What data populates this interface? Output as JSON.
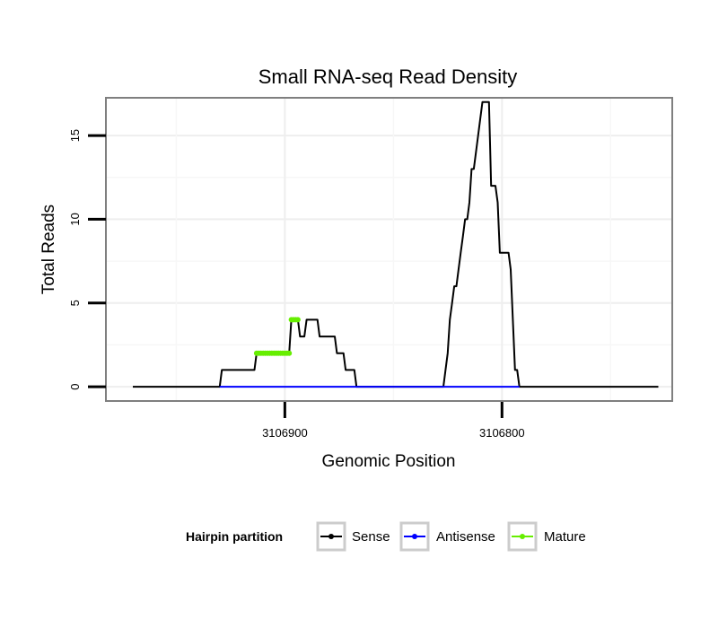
{
  "chart_data": {
    "type": "line",
    "title": "Small RNA-seq Read Density",
    "xlabel": "Genomic Position",
    "ylabel": "Total Reads",
    "x_reversed": true,
    "xlim": [
      3106982,
      3106722
    ],
    "ylim": [
      -0.8,
      17.2
    ],
    "x_ticks": [
      3106900,
      3106800
    ],
    "x_tick_labels": [
      "3106900",
      "3106800"
    ],
    "y_ticks": [
      0,
      5,
      10,
      15
    ],
    "y_tick_labels": [
      "0",
      "5",
      "10",
      "15"
    ],
    "grid": true,
    "legend": {
      "title": "Hairpin partition",
      "placement": "bottom",
      "entries": [
        "Sense",
        "Antisense",
        "Mature"
      ],
      "colors": [
        "#000000",
        "#0000ff",
        "#66ee00"
      ]
    },
    "series": [
      {
        "name": "Sense",
        "color": "#000000",
        "points": [
          [
            3106970,
            0
          ],
          [
            3106930,
            0
          ],
          [
            3106929,
            1
          ],
          [
            3106914,
            1
          ],
          [
            3106913,
            2
          ],
          [
            3106898,
            2
          ],
          [
            3106897,
            4
          ],
          [
            3106894,
            4
          ],
          [
            3106893,
            3
          ],
          [
            3106891,
            3
          ],
          [
            3106890,
            4
          ],
          [
            3106885,
            4
          ],
          [
            3106884,
            3
          ],
          [
            3106877,
            3
          ],
          [
            3106876,
            2
          ],
          [
            3106873,
            2
          ],
          [
            3106872,
            1
          ],
          [
            3106868,
            1
          ],
          [
            3106867,
            0
          ],
          [
            3106827,
            0
          ],
          [
            3106826,
            1
          ],
          [
            3106825,
            2
          ],
          [
            3106824,
            4
          ],
          [
            3106823,
            5
          ],
          [
            3106822,
            6
          ],
          [
            3106821,
            6
          ],
          [
            3106820,
            7
          ],
          [
            3106819,
            8
          ],
          [
            3106818,
            9
          ],
          [
            3106817,
            10
          ],
          [
            3106816,
            10
          ],
          [
            3106815,
            11
          ],
          [
            3106814,
            13
          ],
          [
            3106813,
            13
          ],
          [
            3106812,
            14
          ],
          [
            3106811,
            15
          ],
          [
            3106810,
            16
          ],
          [
            3106809,
            17
          ],
          [
            3106806,
            17
          ],
          [
            3106805,
            12
          ],
          [
            3106803,
            12
          ],
          [
            3106802,
            11
          ],
          [
            3106801,
            8
          ],
          [
            3106797,
            8
          ],
          [
            3106796,
            7
          ],
          [
            3106795,
            4
          ],
          [
            3106794,
            1
          ],
          [
            3106793,
            1
          ],
          [
            3106792,
            0
          ],
          [
            3106728,
            0
          ]
        ]
      },
      {
        "name": "Antisense",
        "color": "#0000ff",
        "points": [
          [
            3106930,
            0
          ],
          [
            3106867,
            0
          ],
          [
            3106827,
            0
          ],
          [
            3106792,
            0
          ]
        ]
      },
      {
        "name": "Mature",
        "color": "#66ee00",
        "points": [
          [
            3106913,
            2
          ],
          [
            3106912,
            2
          ],
          [
            3106911,
            2
          ],
          [
            3106910,
            2
          ],
          [
            3106909,
            2
          ],
          [
            3106908,
            2
          ],
          [
            3106907,
            2
          ],
          [
            3106906,
            2
          ],
          [
            3106905,
            2
          ],
          [
            3106904,
            2
          ],
          [
            3106903,
            2
          ],
          [
            3106902,
            2
          ],
          [
            3106901,
            2
          ],
          [
            3106900,
            2
          ],
          [
            3106899,
            2
          ],
          [
            3106898,
            2
          ],
          [
            3106897,
            4
          ],
          [
            3106896,
            4
          ],
          [
            3106895,
            4
          ],
          [
            3106894,
            4
          ]
        ]
      }
    ]
  }
}
